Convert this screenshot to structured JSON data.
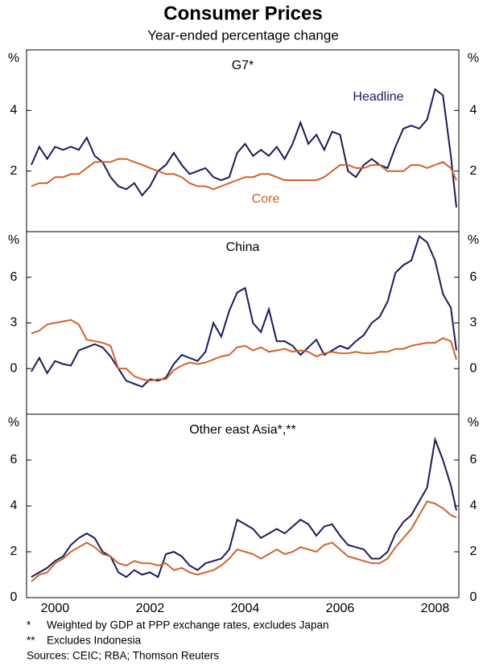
{
  "title": "Consumer Prices",
  "subtitle": "Year-ended percentage change",
  "notes": [
    {
      "marker": "*",
      "text": "Weighted by GDP at PPP exchange rates, excludes Japan"
    },
    {
      "marker": "**",
      "text": "Excludes Indonesia"
    }
  ],
  "sources": "Sources: CEIC; RBA; Thomson Reuters",
  "chart_data": [
    {
      "type": "line",
      "title": "G7*",
      "unit": "%",
      "x": [
        2000,
        2000.167,
        2000.333,
        2000.5,
        2000.667,
        2000.833,
        2001,
        2001.167,
        2001.333,
        2001.5,
        2001.667,
        2001.833,
        2002,
        2002.167,
        2002.333,
        2002.5,
        2002.667,
        2002.833,
        2003,
        2003.167,
        2003.333,
        2003.5,
        2003.667,
        2003.833,
        2004,
        2004.167,
        2004.333,
        2004.5,
        2004.667,
        2004.833,
        2005,
        2005.167,
        2005.333,
        2005.5,
        2005.667,
        2005.833,
        2006,
        2006.167,
        2006.333,
        2006.5,
        2006.667,
        2006.833,
        2007,
        2007.167,
        2007.333,
        2007.5,
        2007.667,
        2007.833,
        2008,
        2008.167,
        2008.333,
        2008.5,
        2008.667,
        2008.833,
        2008.95
      ],
      "xlim": [
        1999.9,
        2009
      ],
      "ylim": [
        0,
        6
      ],
      "yticks": [
        2,
        4
      ],
      "series": [
        {
          "name": "Headline",
          "color": "#1b1b5c",
          "values": [
            2.2,
            2.8,
            2.4,
            2.8,
            2.7,
            2.8,
            2.7,
            3.1,
            2.5,
            2.3,
            1.8,
            1.5,
            1.4,
            1.6,
            1.2,
            1.5,
            2.0,
            2.2,
            2.6,
            2.2,
            1.9,
            2.0,
            2.1,
            1.8,
            1.7,
            1.8,
            2.6,
            2.9,
            2.5,
            2.7,
            2.5,
            2.8,
            2.4,
            2.9,
            3.6,
            2.9,
            3.2,
            2.7,
            3.3,
            3.2,
            2.0,
            1.8,
            2.2,
            2.4,
            2.2,
            2.1,
            2.8,
            3.4,
            3.5,
            3.4,
            3.7,
            4.7,
            4.5,
            2.5,
            0.8
          ]
        },
        {
          "name": "Core",
          "color": "#d0622a",
          "values": [
            1.5,
            1.6,
            1.6,
            1.8,
            1.8,
            1.9,
            1.9,
            2.1,
            2.3,
            2.3,
            2.3,
            2.4,
            2.4,
            2.3,
            2.2,
            2.1,
            2.0,
            1.9,
            1.9,
            1.8,
            1.6,
            1.5,
            1.5,
            1.4,
            1.5,
            1.6,
            1.7,
            1.8,
            1.8,
            1.9,
            1.9,
            1.8,
            1.7,
            1.7,
            1.7,
            1.7,
            1.7,
            1.8,
            2.0,
            2.2,
            2.2,
            2.1,
            2.1,
            2.2,
            2.2,
            2.0,
            2.0,
            2.0,
            2.2,
            2.2,
            2.1,
            2.2,
            2.3,
            2.1,
            1.7
          ]
        }
      ]
    },
    {
      "type": "line",
      "title": "China",
      "unit": "%",
      "x": [
        2000,
        2000.167,
        2000.333,
        2000.5,
        2000.667,
        2000.833,
        2001,
        2001.167,
        2001.333,
        2001.5,
        2001.667,
        2001.833,
        2002,
        2002.167,
        2002.333,
        2002.5,
        2002.667,
        2002.833,
        2003,
        2003.167,
        2003.333,
        2003.5,
        2003.667,
        2003.833,
        2004,
        2004.167,
        2004.333,
        2004.5,
        2004.667,
        2004.833,
        2005,
        2005.167,
        2005.333,
        2005.5,
        2005.667,
        2005.833,
        2006,
        2006.167,
        2006.333,
        2006.5,
        2006.667,
        2006.833,
        2007,
        2007.167,
        2007.333,
        2007.5,
        2007.667,
        2007.833,
        2008,
        2008.167,
        2008.333,
        2008.5,
        2008.667,
        2008.833,
        2008.95
      ],
      "xlim": [
        1999.9,
        2009
      ],
      "ylim": [
        -3,
        9
      ],
      "yticks": [
        0,
        3,
        6
      ],
      "series": [
        {
          "color": "#1b1b5c",
          "values": [
            -0.2,
            0.7,
            -0.3,
            0.5,
            0.3,
            0.2,
            1.2,
            1.4,
            1.6,
            1.4,
            0.8,
            0.0,
            -0.8,
            -1.0,
            -1.2,
            -0.7,
            -0.8,
            -0.6,
            0.3,
            0.9,
            0.7,
            0.5,
            1.1,
            3.0,
            2.1,
            3.8,
            5.0,
            5.3,
            3.0,
            2.4,
            3.9,
            1.8,
            1.8,
            1.5,
            0.9,
            1.4,
            1.9,
            0.9,
            1.2,
            1.5,
            1.3,
            1.8,
            2.2,
            3.0,
            3.4,
            4.4,
            6.3,
            6.8,
            7.1,
            8.7,
            8.3,
            7.1,
            4.9,
            4.0,
            1.2
          ]
        },
        {
          "color": "#d0622a",
          "values": [
            2.3,
            2.5,
            2.9,
            3.0,
            3.1,
            3.2,
            2.9,
            1.9,
            1.8,
            1.7,
            1.5,
            0.0,
            0.0,
            -0.5,
            -0.7,
            -0.8,
            -0.7,
            -0.7,
            -0.1,
            0.2,
            0.4,
            0.3,
            0.4,
            0.6,
            0.8,
            0.9,
            1.4,
            1.5,
            1.2,
            1.4,
            1.1,
            1.2,
            1.3,
            1.1,
            1.2,
            1.1,
            0.8,
            1.0,
            1.1,
            1.0,
            1.0,
            1.1,
            1.0,
            1.0,
            1.1,
            1.1,
            1.3,
            1.3,
            1.5,
            1.6,
            1.7,
            1.7,
            2.0,
            1.8,
            0.6
          ]
        }
      ]
    },
    {
      "type": "line",
      "title": "Other east Asia*,**",
      "unit": "%",
      "x": [
        2000,
        2000.167,
        2000.333,
        2000.5,
        2000.667,
        2000.833,
        2001,
        2001.167,
        2001.333,
        2001.5,
        2001.667,
        2001.833,
        2002,
        2002.167,
        2002.333,
        2002.5,
        2002.667,
        2002.833,
        2003,
        2003.167,
        2003.333,
        2003.5,
        2003.667,
        2003.833,
        2004,
        2004.167,
        2004.333,
        2004.5,
        2004.667,
        2004.833,
        2005,
        2005.167,
        2005.333,
        2005.5,
        2005.667,
        2005.833,
        2006,
        2006.167,
        2006.333,
        2006.5,
        2006.667,
        2006.833,
        2007,
        2007.167,
        2007.333,
        2007.5,
        2007.667,
        2007.833,
        2008,
        2008.167,
        2008.333,
        2008.5,
        2008.667,
        2008.833,
        2008.95
      ],
      "xlim": [
        1999.9,
        2009
      ],
      "ylim": [
        0,
        8
      ],
      "yticks": [
        0,
        2,
        4,
        6
      ],
      "xticks": [
        {
          "value": 2000.5,
          "label": "2000"
        },
        {
          "value": 2002.5,
          "label": "2002"
        },
        {
          "value": 2004.5,
          "label": "2004"
        },
        {
          "value": 2006.5,
          "label": "2006"
        },
        {
          "value": 2008.5,
          "label": "2008"
        }
      ],
      "series": [
        {
          "color": "#1b1b5c",
          "values": [
            0.9,
            1.1,
            1.3,
            1.6,
            1.8,
            2.3,
            2.6,
            2.8,
            2.6,
            2.0,
            1.8,
            1.1,
            0.9,
            1.2,
            1.0,
            1.1,
            0.9,
            1.9,
            2.0,
            1.8,
            1.4,
            1.2,
            1.5,
            1.6,
            1.7,
            2.1,
            3.4,
            3.2,
            3.0,
            2.6,
            2.8,
            3.0,
            2.8,
            3.1,
            3.4,
            3.2,
            2.7,
            3.1,
            3.2,
            2.7,
            2.3,
            2.2,
            2.1,
            1.7,
            1.7,
            2.0,
            2.8,
            3.3,
            3.6,
            4.2,
            4.8,
            6.9,
            6.0,
            4.9,
            3.8
          ]
        },
        {
          "color": "#d0622a",
          "values": [
            0.7,
            1.0,
            1.1,
            1.5,
            1.7,
            2.0,
            2.2,
            2.4,
            2.2,
            1.9,
            1.8,
            1.5,
            1.4,
            1.6,
            1.5,
            1.5,
            1.4,
            1.5,
            1.2,
            1.3,
            1.1,
            1.0,
            1.1,
            1.2,
            1.4,
            1.7,
            2.1,
            2.0,
            1.9,
            1.7,
            1.9,
            2.1,
            1.9,
            2.0,
            2.2,
            2.1,
            2.0,
            2.3,
            2.4,
            2.1,
            1.8,
            1.7,
            1.6,
            1.5,
            1.5,
            1.7,
            2.2,
            2.6,
            3.0,
            3.6,
            4.2,
            4.1,
            3.9,
            3.6,
            3.5
          ]
        }
      ]
    }
  ]
}
